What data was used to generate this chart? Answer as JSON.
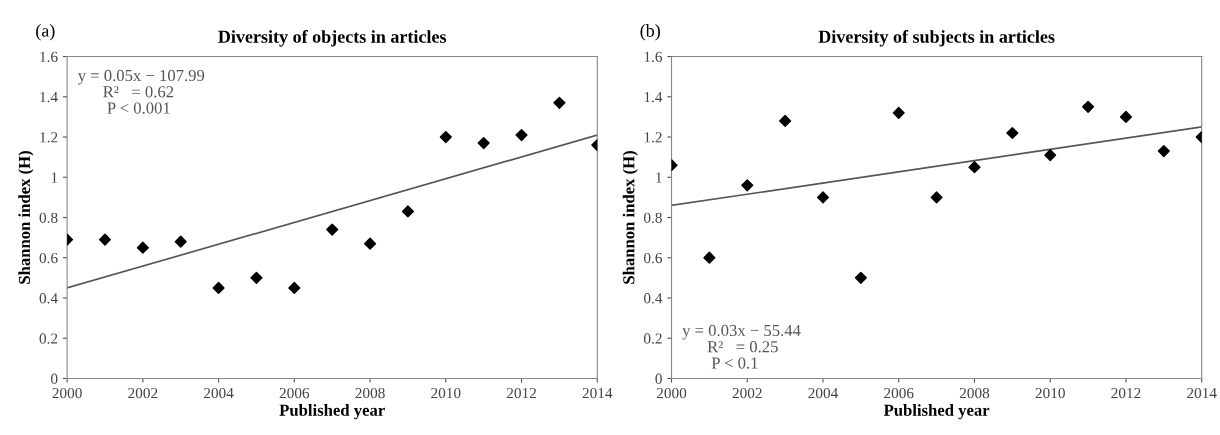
{
  "chart_data": [
    {
      "type": "scatter",
      "title": "Diversity of objects in articles",
      "xlabel": "Published year",
      "ylabel": "Shannon index (H)",
      "annotations": [
        "(a)",
        "y = 0.05x − 107.99\n      R²   = 0.62\n       P < 0.001"
      ],
      "series": [
        {
          "color": "#000000",
          "marker": "diamond",
          "x": [
            2000,
            2001,
            2002,
            2003,
            2004,
            2005,
            2006,
            2007,
            2008,
            2009,
            2010,
            2011,
            2012,
            2013,
            2014
          ],
          "values": [
            0.69,
            0.69,
            0.65,
            0.68,
            0.45,
            0.5,
            0.45,
            0.74,
            0.67,
            0.83,
            1.2,
            1.17,
            1.21,
            1.37,
            1.16
          ]
        },
        {
          "type": "line",
          "color": "#555555",
          "marker": "none",
          "line_style": "solid",
          "x": [
            2000,
            2014
          ],
          "values": [
            0.45,
            1.21
          ]
        }
      ],
      "xlim": [
        2000,
        2014
      ],
      "xticks": [
        2000,
        2002,
        2004,
        2006,
        2008,
        2010,
        2012,
        2014
      ],
      "ylim": [
        0,
        1.6
      ],
      "yticks": [
        0,
        0.2,
        0.4,
        0.6,
        0.8,
        1,
        1.2,
        1.4,
        1.6
      ],
      "grid": false,
      "legend": false
    },
    {
      "type": "scatter",
      "title": "Diversity of subjects in articles",
      "xlabel": "Published year",
      "ylabel": "Shannon index (H)",
      "annotations": [
        "(b)",
        "y = 0.03x − 55.44\n      R²   = 0.25\n       P < 0.1"
      ],
      "series": [
        {
          "color": "#000000",
          "marker": "diamond",
          "x": [
            2000,
            2001,
            2002,
            2003,
            2004,
            2005,
            2006,
            2007,
            2008,
            2009,
            2010,
            2011,
            2012,
            2013,
            2014
          ],
          "values": [
            1.06,
            0.6,
            0.96,
            1.28,
            0.9,
            0.5,
            1.32,
            0.9,
            1.05,
            1.22,
            1.11,
            1.35,
            1.3,
            1.13,
            1.2
          ]
        },
        {
          "type": "line",
          "color": "#555555",
          "marker": "none",
          "line_style": "solid",
          "x": [
            2000,
            2014
          ],
          "values": [
            0.86,
            1.25
          ]
        }
      ],
      "xlim": [
        2000,
        2014
      ],
      "xticks": [
        2000,
        2002,
        2004,
        2006,
        2008,
        2010,
        2012,
        2014
      ],
      "ylim": [
        0,
        1.6
      ],
      "yticks": [
        0,
        0.2,
        0.4,
        0.6,
        0.8,
        1,
        1.2,
        1.4,
        1.6
      ],
      "grid": false,
      "legend": false
    }
  ]
}
